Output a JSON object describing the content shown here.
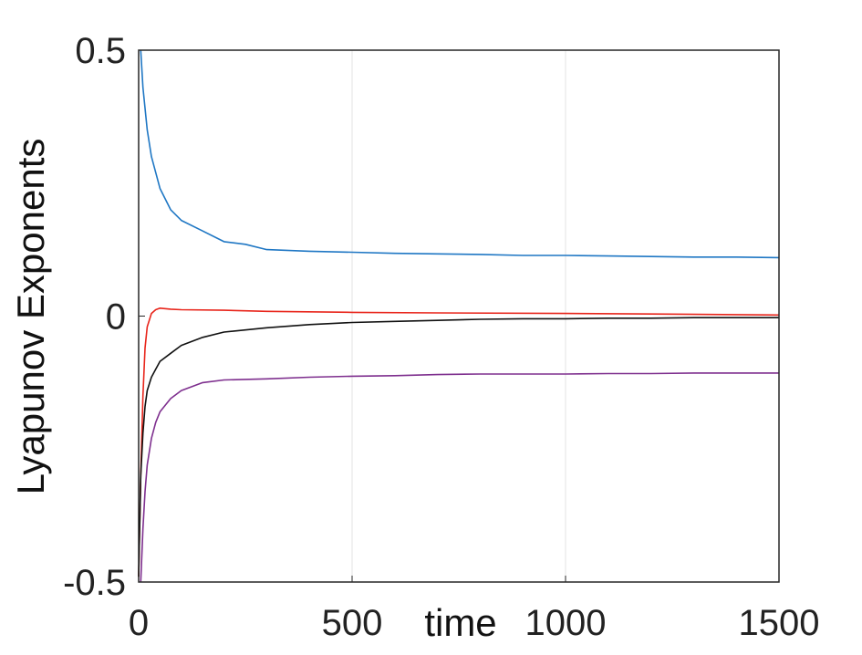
{
  "chart_data": {
    "type": "line",
    "title": "",
    "xlabel": "time",
    "ylabel": "Lyapunov Exponents",
    "xlim": [
      0,
      1500
    ],
    "ylim": [
      -0.5,
      0.5
    ],
    "x_ticks": [
      0,
      500,
      1000,
      1500
    ],
    "x_tick_labels": [
      "0",
      "500",
      "1000",
      "1500"
    ],
    "y_ticks": [
      -0.5,
      0,
      0.5
    ],
    "y_tick_labels": [
      "-0.5",
      "0",
      "0.5"
    ],
    "grid": "x-only",
    "legend": "none",
    "series": [
      {
        "color": "#1f77c4",
        "x": [
          5,
          10,
          20,
          30,
          50,
          75,
          100,
          150,
          200,
          250,
          300,
          400,
          500,
          600,
          700,
          800,
          900,
          1000,
          1100,
          1200,
          1300,
          1400,
          1500
        ],
        "y": [
          0.5,
          0.43,
          0.35,
          0.3,
          0.24,
          0.2,
          0.18,
          0.16,
          0.14,
          0.135,
          0.125,
          0.122,
          0.12,
          0.118,
          0.117,
          0.116,
          0.114,
          0.114,
          0.113,
          0.112,
          0.111,
          0.111,
          0.11
        ]
      },
      {
        "color": "#e8251b",
        "x": [
          0,
          5,
          10,
          15,
          20,
          30,
          40,
          50,
          75,
          100,
          200,
          300,
          500,
          700,
          1000,
          1200,
          1500
        ],
        "y": [
          -0.49,
          -0.3,
          -0.15,
          -0.06,
          -0.02,
          0.005,
          0.012,
          0.015,
          0.013,
          0.012,
          0.011,
          0.009,
          0.007,
          0.006,
          0.005,
          0.004,
          0.002
        ]
      },
      {
        "color": "#111111",
        "x": [
          0,
          5,
          10,
          15,
          20,
          30,
          40,
          50,
          75,
          100,
          150,
          200,
          300,
          400,
          500,
          600,
          700,
          800,
          900,
          1000,
          1100,
          1200,
          1300,
          1400,
          1500
        ],
        "y": [
          -0.49,
          -0.3,
          -0.22,
          -0.17,
          -0.14,
          -0.115,
          -0.1,
          -0.085,
          -0.07,
          -0.055,
          -0.04,
          -0.03,
          -0.022,
          -0.016,
          -0.012,
          -0.01,
          -0.008,
          -0.006,
          -0.005,
          -0.005,
          -0.004,
          -0.004,
          -0.003,
          -0.003,
          -0.003
        ]
      },
      {
        "color": "#7e2f8e",
        "x": [
          5,
          10,
          15,
          20,
          30,
          40,
          50,
          75,
          100,
          150,
          200,
          300,
          400,
          500,
          600,
          700,
          800,
          900,
          1000,
          1100,
          1200,
          1300,
          1400,
          1500
        ],
        "y": [
          -0.5,
          -0.4,
          -0.33,
          -0.28,
          -0.23,
          -0.2,
          -0.18,
          -0.155,
          -0.14,
          -0.125,
          -0.12,
          -0.118,
          -0.115,
          -0.113,
          -0.112,
          -0.11,
          -0.109,
          -0.109,
          -0.109,
          -0.108,
          -0.108,
          -0.107,
          -0.107,
          -0.107
        ]
      }
    ]
  }
}
